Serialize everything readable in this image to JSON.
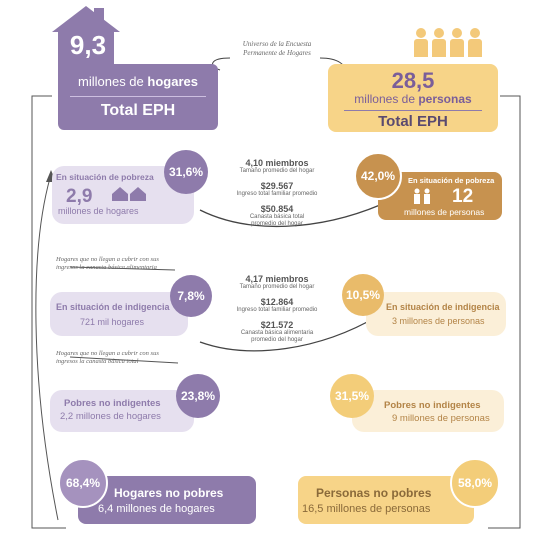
{
  "header": {
    "left": {
      "number": "9,3",
      "line1_pre": "millones de ",
      "line1_bold": "hogares",
      "line2": "Total EPH"
    },
    "right": {
      "number": "28,5",
      "line1_pre": "millones de ",
      "line1_bold": "personas",
      "line2": "Total EPH"
    },
    "caption": "Universo de la Encuesta Permanente de Hogares"
  },
  "pobreza": {
    "hogares": {
      "title": "En situación de pobreza",
      "percent": "31,6%",
      "number": "2,9",
      "label": "millones de hogares"
    },
    "personas": {
      "title": "En situación de pobreza",
      "percent": "42,0%",
      "number": "12",
      "label": "millones de personas"
    },
    "middle": {
      "miembros": "4,10 miembros",
      "miembros_sub": "Tamaño promedio del hogar",
      "ingreso": "$29.567",
      "ingreso_sub": "Ingreso total familiar promedio",
      "canasta": "$50.854",
      "canasta_sub": "Canasta básica total promedio del hogar"
    }
  },
  "notes": {
    "alimentaria": "Hogares que no llegan a cubrir con sus ingresos la canasta básica alimentaria",
    "total": "Hogares que no llegan a cubrir con sus ingresos la canasta básica total"
  },
  "indigencia": {
    "hogares": {
      "title": "En situación de indigencia",
      "percent": "7,8%",
      "label": "721 mil hogares"
    },
    "personas": {
      "title": "En situación de indigencia",
      "percent": "10,5%",
      "label": "3 millones de personas"
    },
    "middle": {
      "miembros": "4,17 miembros",
      "miembros_sub": "Tamaño promedio del hogar",
      "ingreso": "$12.864",
      "ingreso_sub": "Ingreso total familiar promedio",
      "canasta": "$21.572",
      "canasta_sub": "Canasta básica alimentaria promedio del hogar"
    }
  },
  "no_indigentes": {
    "hogares": {
      "title": "Pobres no indigentes",
      "percent": "23,8%",
      "label": "2,2 millones de hogares"
    },
    "personas": {
      "title": "Pobres no indigentes",
      "percent": "31,5%",
      "label": "9 millones de personas"
    }
  },
  "no_pobres": {
    "hogares": {
      "title": "Hogares no pobres",
      "percent": "68,4%",
      "label": "6,4 millones de hogares"
    },
    "personas": {
      "title": "Personas no pobres",
      "percent": "58,0%",
      "label": "16,5 millones de personas"
    }
  },
  "colors": {
    "purple": "#8e7bab",
    "yellow": "#f7d488",
    "orange": "#c7924f"
  }
}
